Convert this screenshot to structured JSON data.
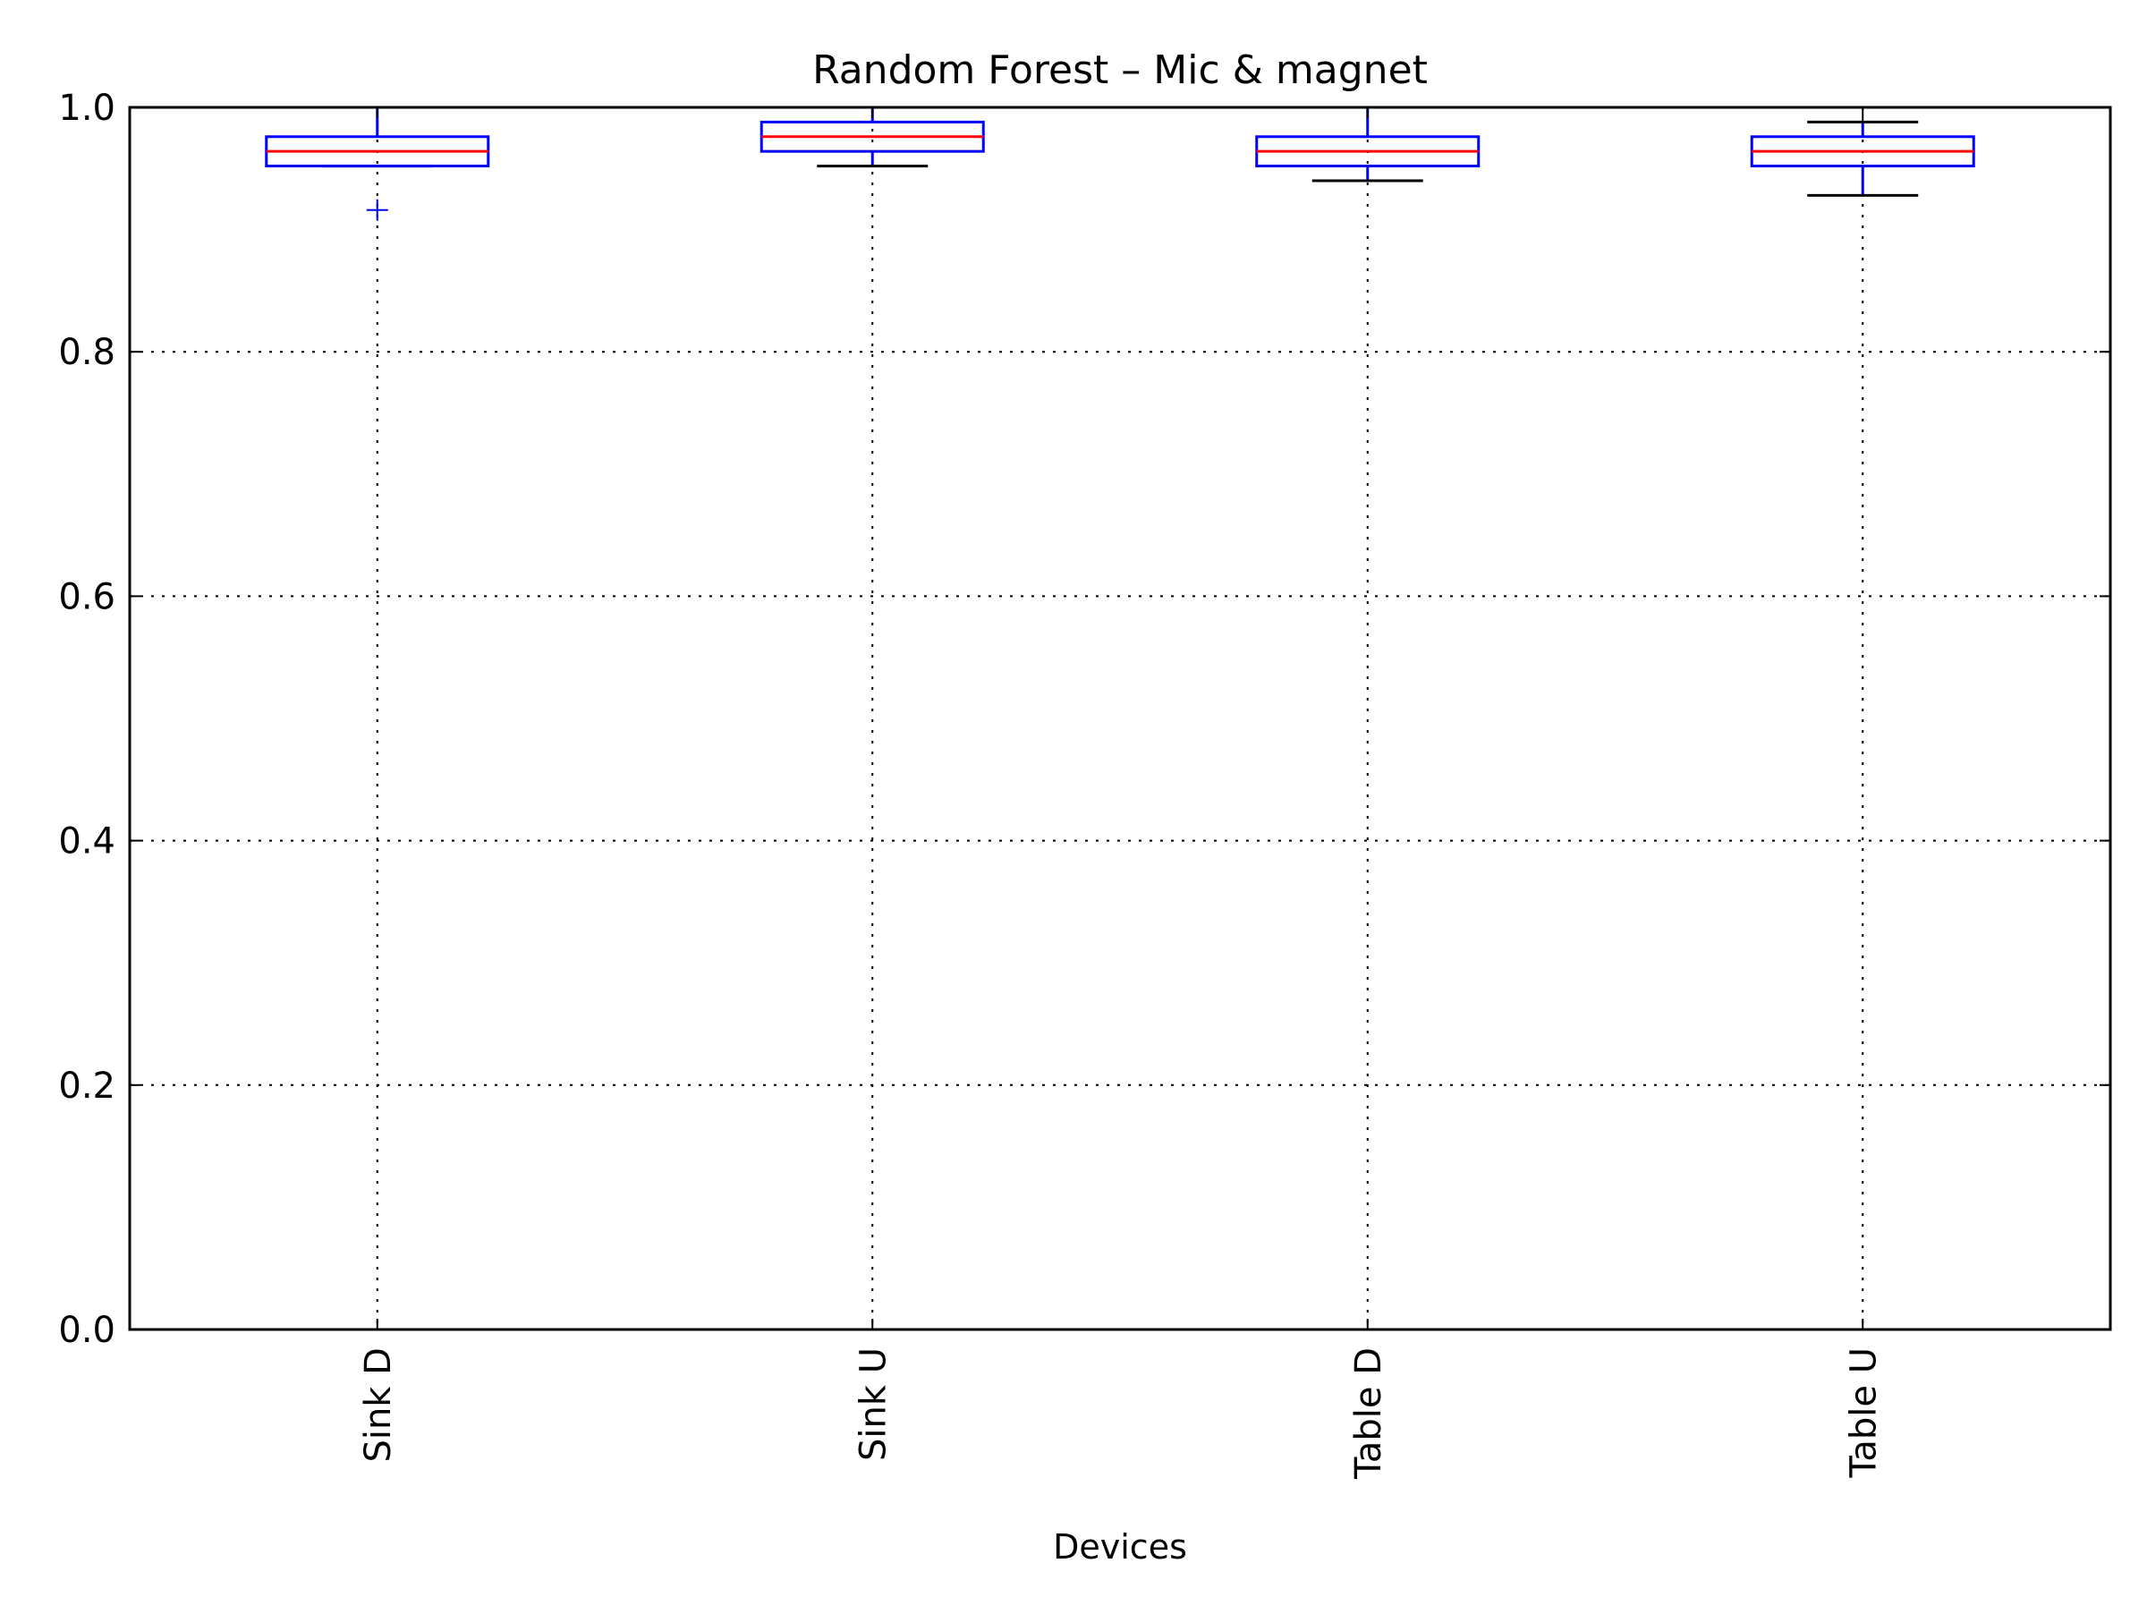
{
  "chart_data": {
    "type": "box",
    "title": "Random Forest – Mic & magnet",
    "xlabel": "Devices",
    "ylabel": "",
    "categories": [
      "Sink D",
      "Sink U",
      "Table D",
      "Table U"
    ],
    "ylim": [
      0.0,
      1.0
    ],
    "yticks": [
      0.0,
      0.2,
      0.4,
      0.6,
      0.8,
      1.0
    ],
    "ytick_labels": [
      "0.0",
      "0.2",
      "0.4",
      "0.6",
      "0.8",
      "1.0"
    ],
    "grid": true,
    "boxes": [
      {
        "category": "Sink D",
        "whisker_low": 0.952,
        "q1": 0.952,
        "median": 0.964,
        "q3": 0.976,
        "whisker_high": 1.0,
        "outliers": [
          0.916
        ]
      },
      {
        "category": "Sink U",
        "whisker_low": 0.952,
        "q1": 0.964,
        "median": 0.976,
        "q3": 0.988,
        "whisker_high": 1.0,
        "outliers": []
      },
      {
        "category": "Table D",
        "whisker_low": 0.94,
        "q1": 0.952,
        "median": 0.964,
        "q3": 0.976,
        "whisker_high": 1.0,
        "outliers": []
      },
      {
        "category": "Table U",
        "whisker_low": 0.928,
        "q1": 0.952,
        "median": 0.964,
        "q3": 0.976,
        "whisker_high": 0.988,
        "outliers": []
      }
    ],
    "colors": {
      "box": "#0000ff",
      "median": "#ff0000",
      "cap": "#000000",
      "outlier": "#0000ff",
      "grid": "#000000",
      "axes": "#000000"
    }
  }
}
